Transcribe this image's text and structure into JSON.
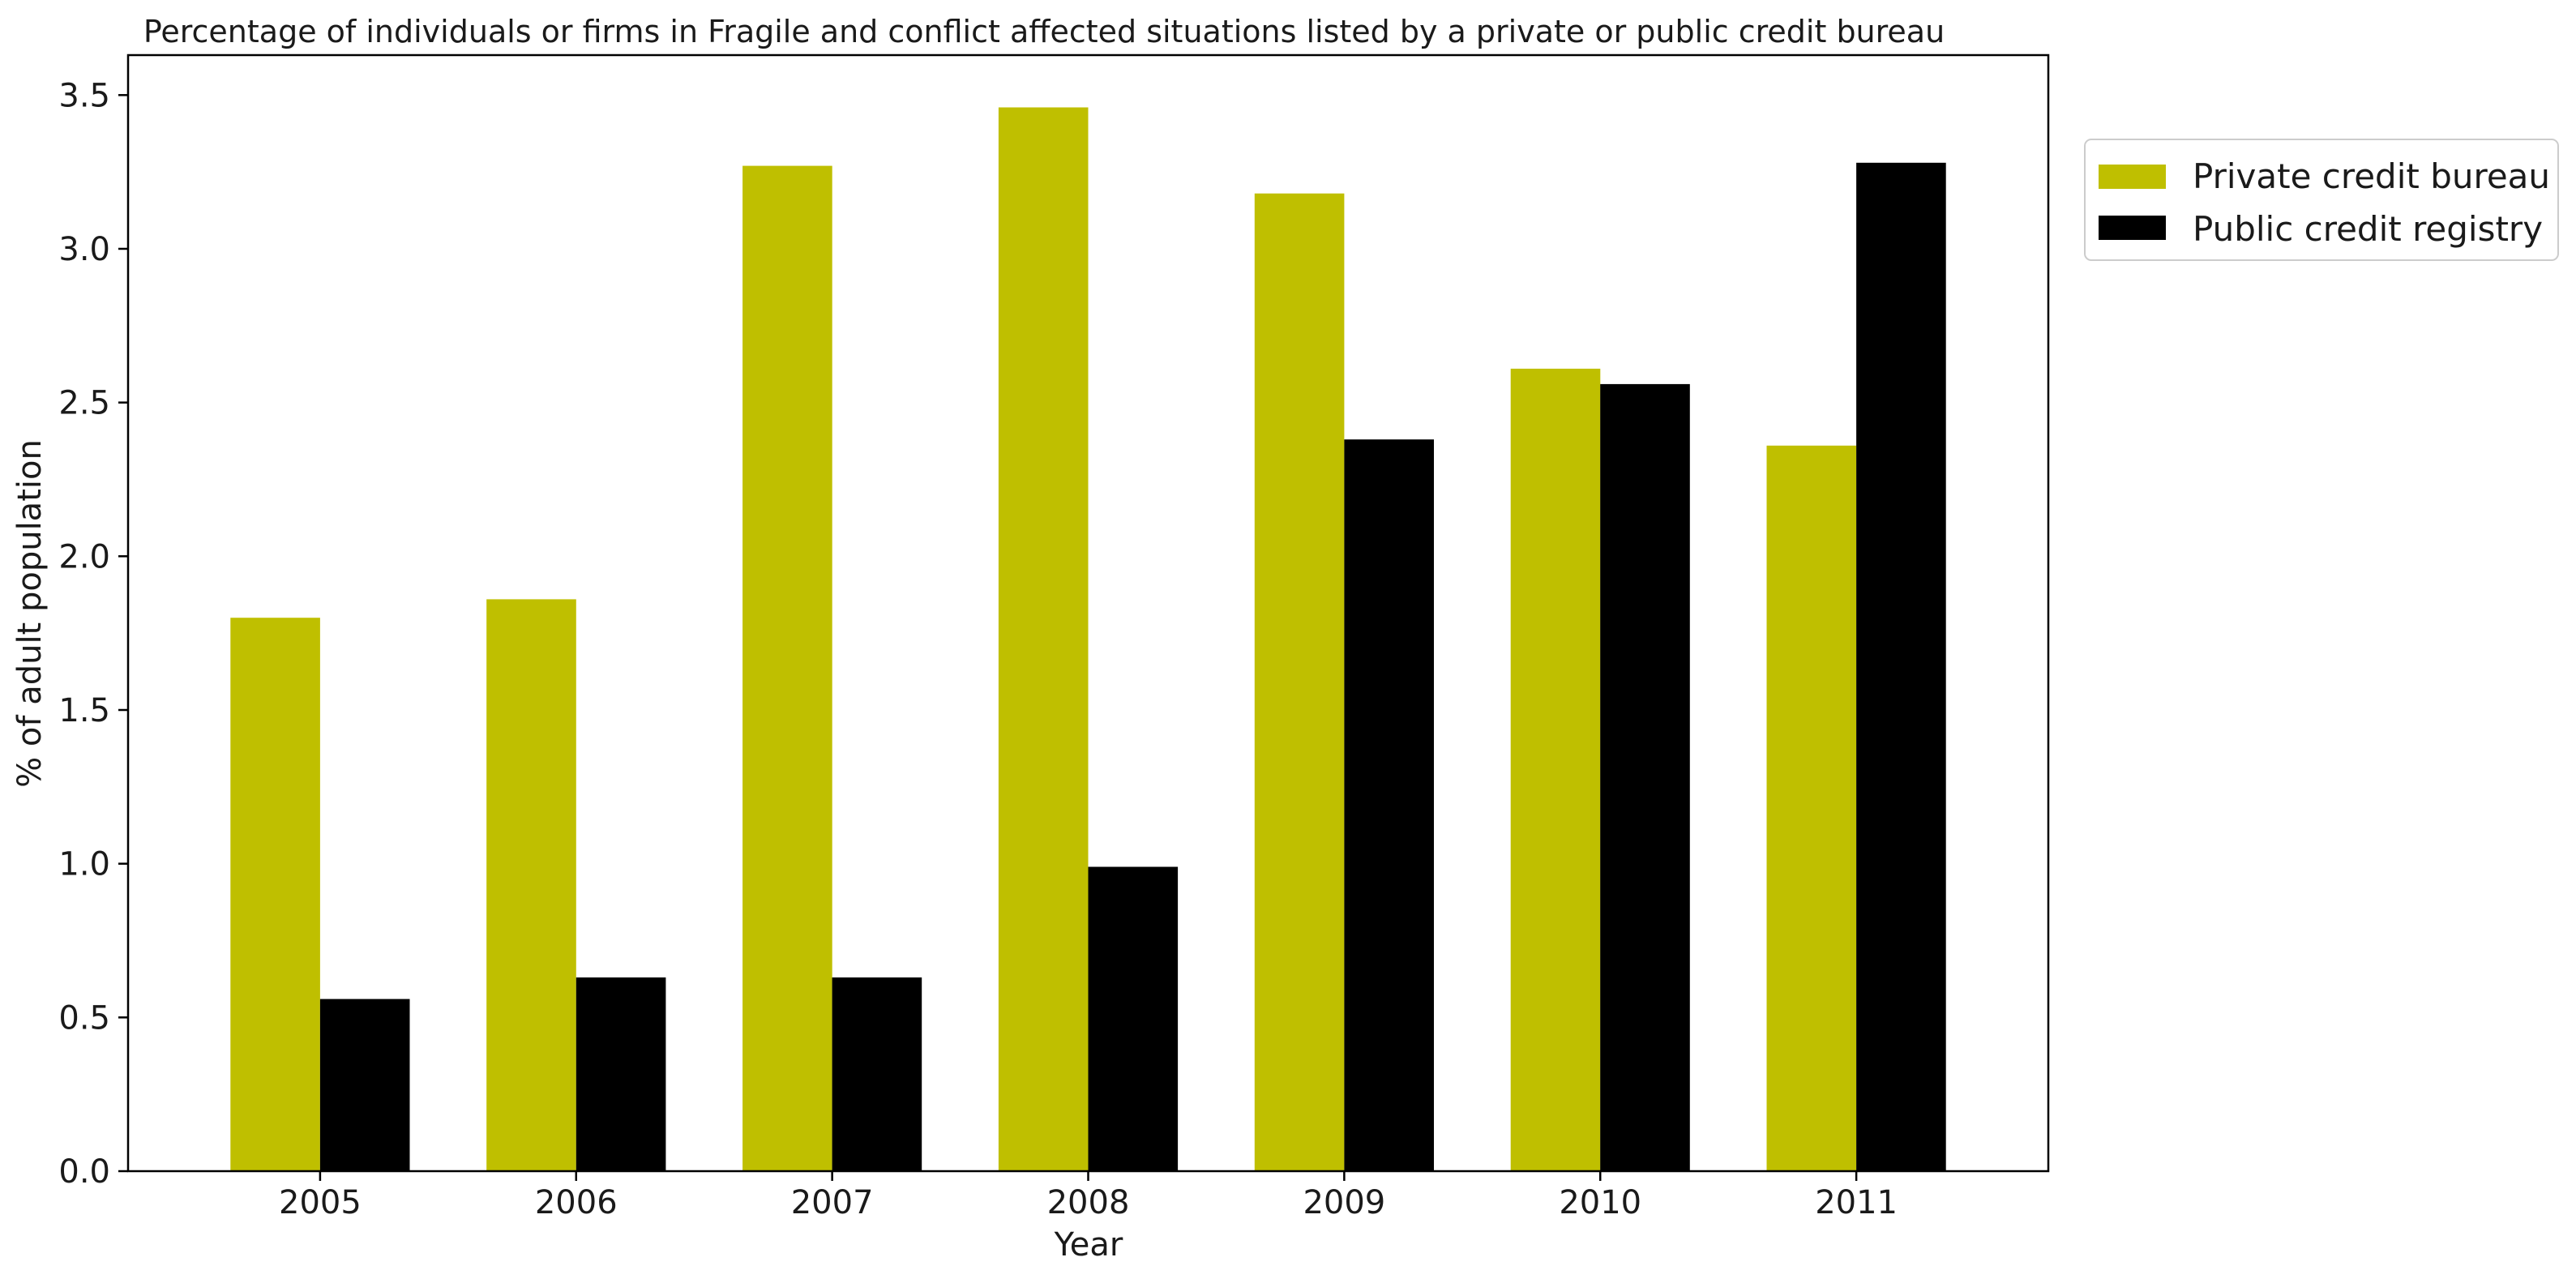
{
  "chart_data": {
    "type": "bar",
    "title": "Percentage of individuals or firms in Fragile and conflict affected situations listed by a private or public credit bureau",
    "xlabel": "Year",
    "ylabel": "% of adult population",
    "categories": [
      "2005",
      "2006",
      "2007",
      "2008",
      "2009",
      "2010",
      "2011"
    ],
    "series": [
      {
        "name": "Private credit bureau",
        "color": "#bfbf00",
        "values": [
          1.8,
          1.86,
          3.27,
          3.46,
          3.18,
          2.61,
          2.36
        ]
      },
      {
        "name": "Public credit registry",
        "color": "#000000",
        "values": [
          0.56,
          0.63,
          0.63,
          0.99,
          2.38,
          2.56,
          3.28
        ]
      }
    ],
    "ylim": [
      0,
      3.63
    ],
    "yticks": [
      "0.0",
      "0.5",
      "1.0",
      "1.5",
      "2.0",
      "2.5",
      "3.0",
      "3.5"
    ],
    "grid": false,
    "legend_position": "upper-right-outside"
  }
}
